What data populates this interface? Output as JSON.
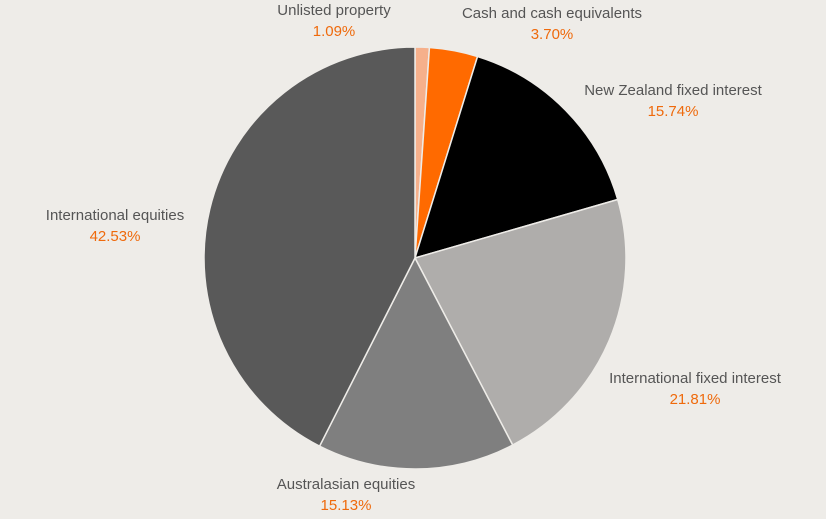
{
  "chart_data": {
    "type": "pie",
    "title": "",
    "slices": [
      {
        "name": "Unlisted property",
        "value": 1.09,
        "display": "1.09%",
        "color": "#f6b08b"
      },
      {
        "name": "Cash and cash equivalents",
        "value": 3.7,
        "display": "3.70%",
        "color": "#ff6a00"
      },
      {
        "name": "New Zealand fixed interest",
        "value": 15.74,
        "display": "15.74%",
        "color": "#000000"
      },
      {
        "name": "International fixed interest",
        "value": 21.81,
        "display": "21.81%",
        "color": "#afadab"
      },
      {
        "name": "Australasian equities",
        "value": 15.13,
        "display": "15.13%",
        "color": "#7f7f7f"
      },
      {
        "name": "International equities",
        "value": 42.53,
        "display": "42.53%",
        "color": "#595959"
      }
    ],
    "start": "top",
    "direction": "clockwise",
    "legend": "none"
  },
  "colors": {
    "background": "#eeece8",
    "label_text": "#555555",
    "value_text": "#ef6a0c"
  }
}
